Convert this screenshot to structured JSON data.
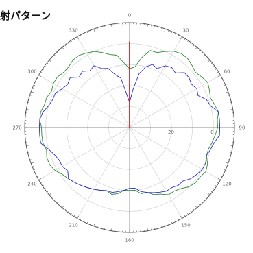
{
  "title": "射パターン",
  "chart_data": {
    "type": "line",
    "projection": "polar",
    "theta_direction": "clockwise",
    "theta_zero": "top",
    "angle_ticks": [
      "0",
      "30",
      "60",
      "90",
      "120",
      "150",
      "180",
      "210",
      "240",
      "270",
      "300",
      "330"
    ],
    "radial_ticks": [
      "-20",
      "0"
    ],
    "r_range": [
      -40,
      10
    ],
    "grid": true,
    "series": [
      {
        "color": "#2e8b2e",
        "points": [
          [
            0,
            -12
          ],
          [
            5,
            -11
          ],
          [
            10,
            -6
          ],
          [
            15,
            -2
          ],
          [
            20,
            -2
          ],
          [
            25,
            0
          ],
          [
            30,
            2
          ],
          [
            35,
            3
          ],
          [
            40,
            3
          ],
          [
            45,
            2
          ],
          [
            50,
            1
          ],
          [
            55,
            2
          ],
          [
            60,
            3
          ],
          [
            65,
            2
          ],
          [
            70,
            1
          ],
          [
            75,
            2
          ],
          [
            80,
            3
          ],
          [
            85,
            2
          ],
          [
            90,
            2
          ],
          [
            95,
            1
          ],
          [
            100,
            0
          ],
          [
            105,
            -1
          ],
          [
            110,
            -1
          ],
          [
            115,
            1
          ],
          [
            120,
            2
          ],
          [
            125,
            1
          ],
          [
            130,
            1
          ],
          [
            135,
            0
          ],
          [
            140,
            -2
          ],
          [
            145,
            -3
          ],
          [
            150,
            -3
          ],
          [
            155,
            -5
          ],
          [
            160,
            -6
          ],
          [
            165,
            -8
          ],
          [
            170,
            -8
          ],
          [
            175,
            -10
          ],
          [
            180,
            -10
          ],
          [
            185,
            -10
          ],
          [
            190,
            -8
          ],
          [
            195,
            -7
          ],
          [
            200,
            -8
          ],
          [
            205,
            -7
          ],
          [
            210,
            -6
          ],
          [
            215,
            -5
          ],
          [
            220,
            -4
          ],
          [
            225,
            -3
          ],
          [
            230,
            -2
          ],
          [
            235,
            -1
          ],
          [
            240,
            1
          ],
          [
            245,
            2
          ],
          [
            250,
            2
          ],
          [
            255,
            1
          ],
          [
            260,
            2
          ],
          [
            265,
            2
          ],
          [
            270,
            2
          ],
          [
            275,
            3
          ],
          [
            280,
            3
          ],
          [
            285,
            2
          ],
          [
            290,
            2
          ],
          [
            295,
            1
          ],
          [
            300,
            2
          ],
          [
            305,
            2
          ],
          [
            310,
            1
          ],
          [
            315,
            1
          ],
          [
            320,
            2
          ],
          [
            325,
            2
          ],
          [
            330,
            1
          ],
          [
            335,
            0
          ],
          [
            340,
            -2
          ],
          [
            345,
            -4
          ],
          [
            350,
            -5
          ],
          [
            355,
            -9
          ]
        ]
      },
      {
        "color": "#2a2ad0",
        "points": [
          [
            0,
            -28
          ],
          [
            5,
            -22
          ],
          [
            10,
            -14
          ],
          [
            15,
            -10
          ],
          [
            20,
            -8
          ],
          [
            25,
            -9
          ],
          [
            30,
            -6
          ],
          [
            35,
            -5
          ],
          [
            40,
            -6
          ],
          [
            45,
            -3
          ],
          [
            50,
            -3
          ],
          [
            55,
            -4
          ],
          [
            60,
            -3
          ],
          [
            65,
            -4
          ],
          [
            70,
            -1
          ],
          [
            75,
            0
          ],
          [
            80,
            3
          ],
          [
            85,
            3
          ],
          [
            90,
            3
          ],
          [
            95,
            3
          ],
          [
            100,
            1
          ],
          [
            105,
            0
          ],
          [
            110,
            -1
          ],
          [
            115,
            0
          ],
          [
            120,
            0
          ],
          [
            125,
            -1
          ],
          [
            130,
            -2
          ],
          [
            135,
            -4
          ],
          [
            140,
            -4
          ],
          [
            145,
            -5
          ],
          [
            150,
            -5
          ],
          [
            155,
            -6
          ],
          [
            160,
            -7
          ],
          [
            165,
            -8
          ],
          [
            170,
            -9
          ],
          [
            175,
            -11
          ],
          [
            180,
            -11
          ],
          [
            185,
            -10
          ],
          [
            190,
            -9
          ],
          [
            195,
            -8
          ],
          [
            200,
            -8
          ],
          [
            205,
            -7
          ],
          [
            210,
            -6
          ],
          [
            215,
            -5
          ],
          [
            220,
            -4
          ],
          [
            225,
            -3
          ],
          [
            230,
            -2
          ],
          [
            235,
            -4
          ],
          [
            240,
            -3
          ],
          [
            245,
            -3
          ],
          [
            250,
            -2
          ],
          [
            255,
            0
          ],
          [
            260,
            3
          ],
          [
            265,
            3
          ],
          [
            270,
            3
          ],
          [
            275,
            3
          ],
          [
            280,
            2
          ],
          [
            285,
            0
          ],
          [
            290,
            -1
          ],
          [
            295,
            -1
          ],
          [
            300,
            -3
          ],
          [
            305,
            -4
          ],
          [
            310,
            -3
          ],
          [
            315,
            -6
          ],
          [
            320,
            -5
          ],
          [
            325,
            -7
          ],
          [
            330,
            -6
          ],
          [
            335,
            -9
          ],
          [
            340,
            -10
          ],
          [
            345,
            -14
          ],
          [
            350,
            -16
          ],
          [
            355,
            -24
          ]
        ]
      },
      {
        "color": "#e00000",
        "points": [
          [
            0,
            -40
          ],
          [
            0,
            1
          ]
        ]
      }
    ]
  }
}
